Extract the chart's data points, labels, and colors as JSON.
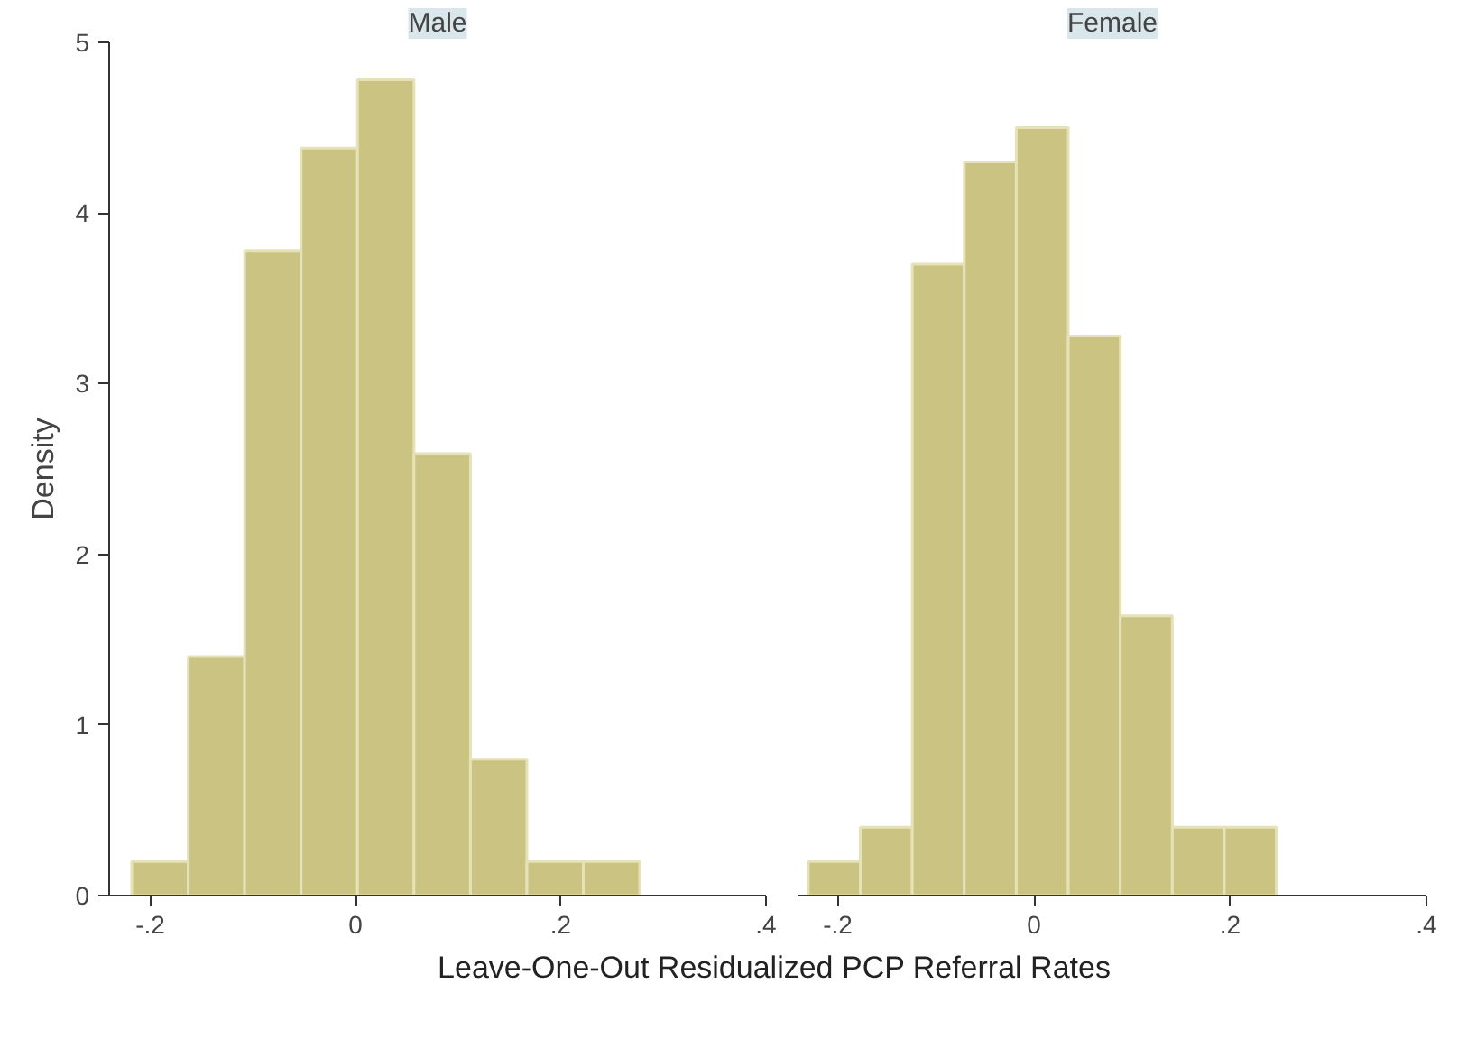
{
  "chart_data": [
    {
      "type": "histogram",
      "title": "Male",
      "ylabel": "Density",
      "xlabel": "Leave-One-Out Residualized PCP Referral Rates",
      "color": "#cbc382",
      "bins": [
        -0.218,
        -0.163,
        -0.108,
        -0.053,
        0.002,
        0.057,
        0.112,
        0.167,
        0.222,
        0.277
      ],
      "values": [
        0.2,
        1.4,
        3.78,
        4.38,
        4.78,
        2.59,
        0.8,
        0.2,
        0.2
      ],
      "xlim": [
        -0.24,
        0.4
      ],
      "ylim": [
        0,
        5
      ],
      "xticks": [
        {
          "value": -0.2,
          "label": "-.2"
        },
        0,
        {
          "value": 0.2,
          "label": ".2"
        },
        {
          "value": 0.4,
          "label": ".4"
        }
      ],
      "yticks": [
        0,
        1,
        2,
        3,
        4,
        5
      ],
      "grid": false
    },
    {
      "type": "histogram",
      "title": "Female",
      "color": "#cbc382",
      "bins": [
        -0.23,
        -0.177,
        -0.124,
        -0.071,
        -0.018,
        0.035,
        0.088,
        0.141,
        0.194,
        0.247
      ],
      "values": [
        0.2,
        0.4,
        3.7,
        4.3,
        4.5,
        3.28,
        1.64,
        0.4,
        0.4
      ],
      "xlim": [
        -0.24,
        0.4
      ],
      "ylim": [
        0,
        5
      ],
      "xticks": [
        {
          "value": -0.2,
          "label": "-.2"
        },
        0,
        {
          "value": 0.2,
          "label": ".2"
        },
        {
          "value": 0.4,
          "label": ".4"
        }
      ],
      "yticks": [
        0,
        1,
        2,
        3,
        4,
        5
      ],
      "grid": false,
      "tick_labels": "x"
    }
  ]
}
